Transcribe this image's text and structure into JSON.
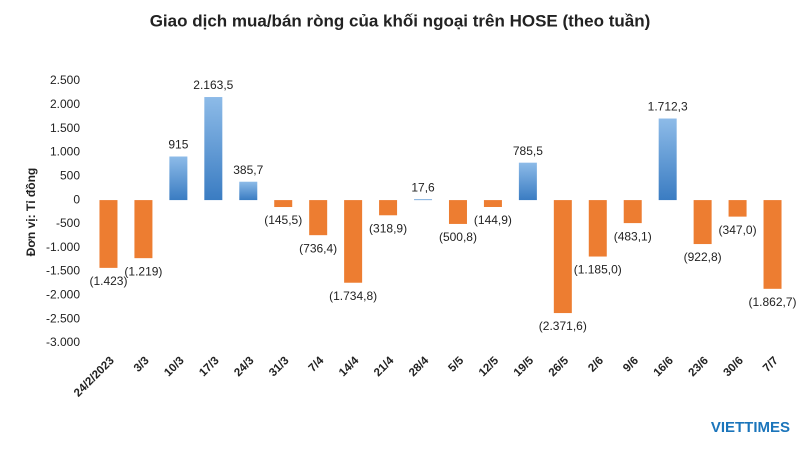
{
  "chart_data": {
    "type": "bar",
    "title": "Giao dịch mua/bán ròng của khối ngoại trên HOSE (theo tuần)",
    "y_label": "Đơn vị: Tỉ đồng",
    "watermark": "VIETTIMES",
    "categories": [
      "24/2/2023",
      "3/3",
      "10/3",
      "17/3",
      "24/3",
      "31/3",
      "7/4",
      "14/4",
      "21/4",
      "28/4",
      "5/5",
      "12/5",
      "19/5",
      "26/5",
      "2/6",
      "9/6",
      "16/6",
      "23/6",
      "30/6",
      "7/7"
    ],
    "values": [
      -1423,
      -1219,
      915,
      2163.5,
      385.7,
      -145.5,
      -736.4,
      -1734.8,
      -318.9,
      17.6,
      -500.8,
      -144.9,
      785.5,
      -2371.6,
      -1185.0,
      -483.1,
      1712.3,
      -922.8,
      -347.0,
      -1862.7
    ],
    "value_labels": [
      "(1.423)",
      "(1.219)",
      "915",
      "2.163,5",
      "385,7",
      "(145,5)",
      "(736,4)",
      "(1.734,8)",
      "(318,9)",
      "17,6",
      "(500,8)",
      "(144,9)",
      "785,5",
      "(2.371,6)",
      "(1.185,0)",
      "(483,1)",
      "1.712,3",
      "(922,8)",
      "(347,0)",
      "(1.862,7)"
    ],
    "colors": {
      "positive": "#4a8fd0",
      "negative": "#ed7d31"
    },
    "ylim": [
      -3000,
      2500
    ],
    "yticks": [
      {
        "value": -3000,
        "label": "-3.000"
      },
      {
        "value": -2500,
        "label": "-2.500"
      },
      {
        "value": -2000,
        "label": "-2.000"
      },
      {
        "value": -1500,
        "label": "-1.500"
      },
      {
        "value": -1000,
        "label": "-1.000"
      },
      -500,
      0,
      500,
      {
        "value": 1000,
        "label": "1.000"
      },
      {
        "value": 1500,
        "label": "1.500"
      },
      {
        "value": 2000,
        "label": "2.000"
      },
      {
        "value": 2500,
        "label": "2.500"
      }
    ],
    "grid": false
  }
}
